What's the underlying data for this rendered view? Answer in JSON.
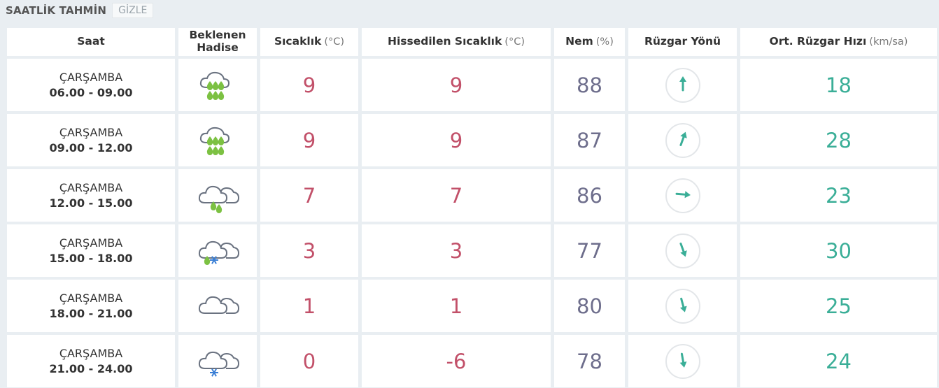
{
  "header": {
    "title": "SAATLİK TAHMİN",
    "toggle_label": "GİZLE"
  },
  "columns": {
    "saat": "Saat",
    "hadise_line1": "Beklenen",
    "hadise_line2": "Hadise",
    "sicaklik": "Sıcaklık",
    "sicaklik_unit": "(°C)",
    "hissedilen": "Hissedilen Sıcaklık",
    "hissedilen_unit": "(°C)",
    "nem": "Nem",
    "nem_unit": "(%)",
    "yon": "Rüzgar Yönü",
    "hiz": "Ort. Rüzgar Hızı",
    "hiz_unit": "(km/sa)"
  },
  "colors": {
    "temp": "#c25069",
    "humidity": "#6e6e8c",
    "wind": "#3aae97",
    "rain": "#7cc142",
    "snow": "#3a7fd5",
    "cloud": "#6a7280"
  },
  "rows": [
    {
      "day": "ÇARŞAMBA",
      "time": "06.00 - 09.00",
      "icon": "heavy-rain-icon",
      "temp": "9",
      "feels": "9",
      "humidity": "88",
      "wind_dir_deg": 0,
      "wind_speed": "18"
    },
    {
      "day": "ÇARŞAMBA",
      "time": "09.00 - 12.00",
      "icon": "heavy-rain-icon",
      "temp": "9",
      "feels": "9",
      "humidity": "87",
      "wind_dir_deg": 20,
      "wind_speed": "28"
    },
    {
      "day": "ÇARŞAMBA",
      "time": "12.00 - 15.00",
      "icon": "light-rain-icon",
      "temp": "7",
      "feels": "7",
      "humidity": "86",
      "wind_dir_deg": 95,
      "wind_speed": "23"
    },
    {
      "day": "ÇARŞAMBA",
      "time": "15.00 - 18.00",
      "icon": "sleet-icon",
      "temp": "3",
      "feels": "3",
      "humidity": "77",
      "wind_dir_deg": 160,
      "wind_speed": "30"
    },
    {
      "day": "ÇARŞAMBA",
      "time": "18.00 - 21.00",
      "icon": "cloudy-icon",
      "temp": "1",
      "feels": "1",
      "humidity": "80",
      "wind_dir_deg": 165,
      "wind_speed": "25"
    },
    {
      "day": "ÇARŞAMBA",
      "time": "21.00 - 24.00",
      "icon": "light-snow-icon",
      "temp": "0",
      "feels": "-6",
      "humidity": "78",
      "wind_dir_deg": 170,
      "wind_speed": "24"
    }
  ]
}
